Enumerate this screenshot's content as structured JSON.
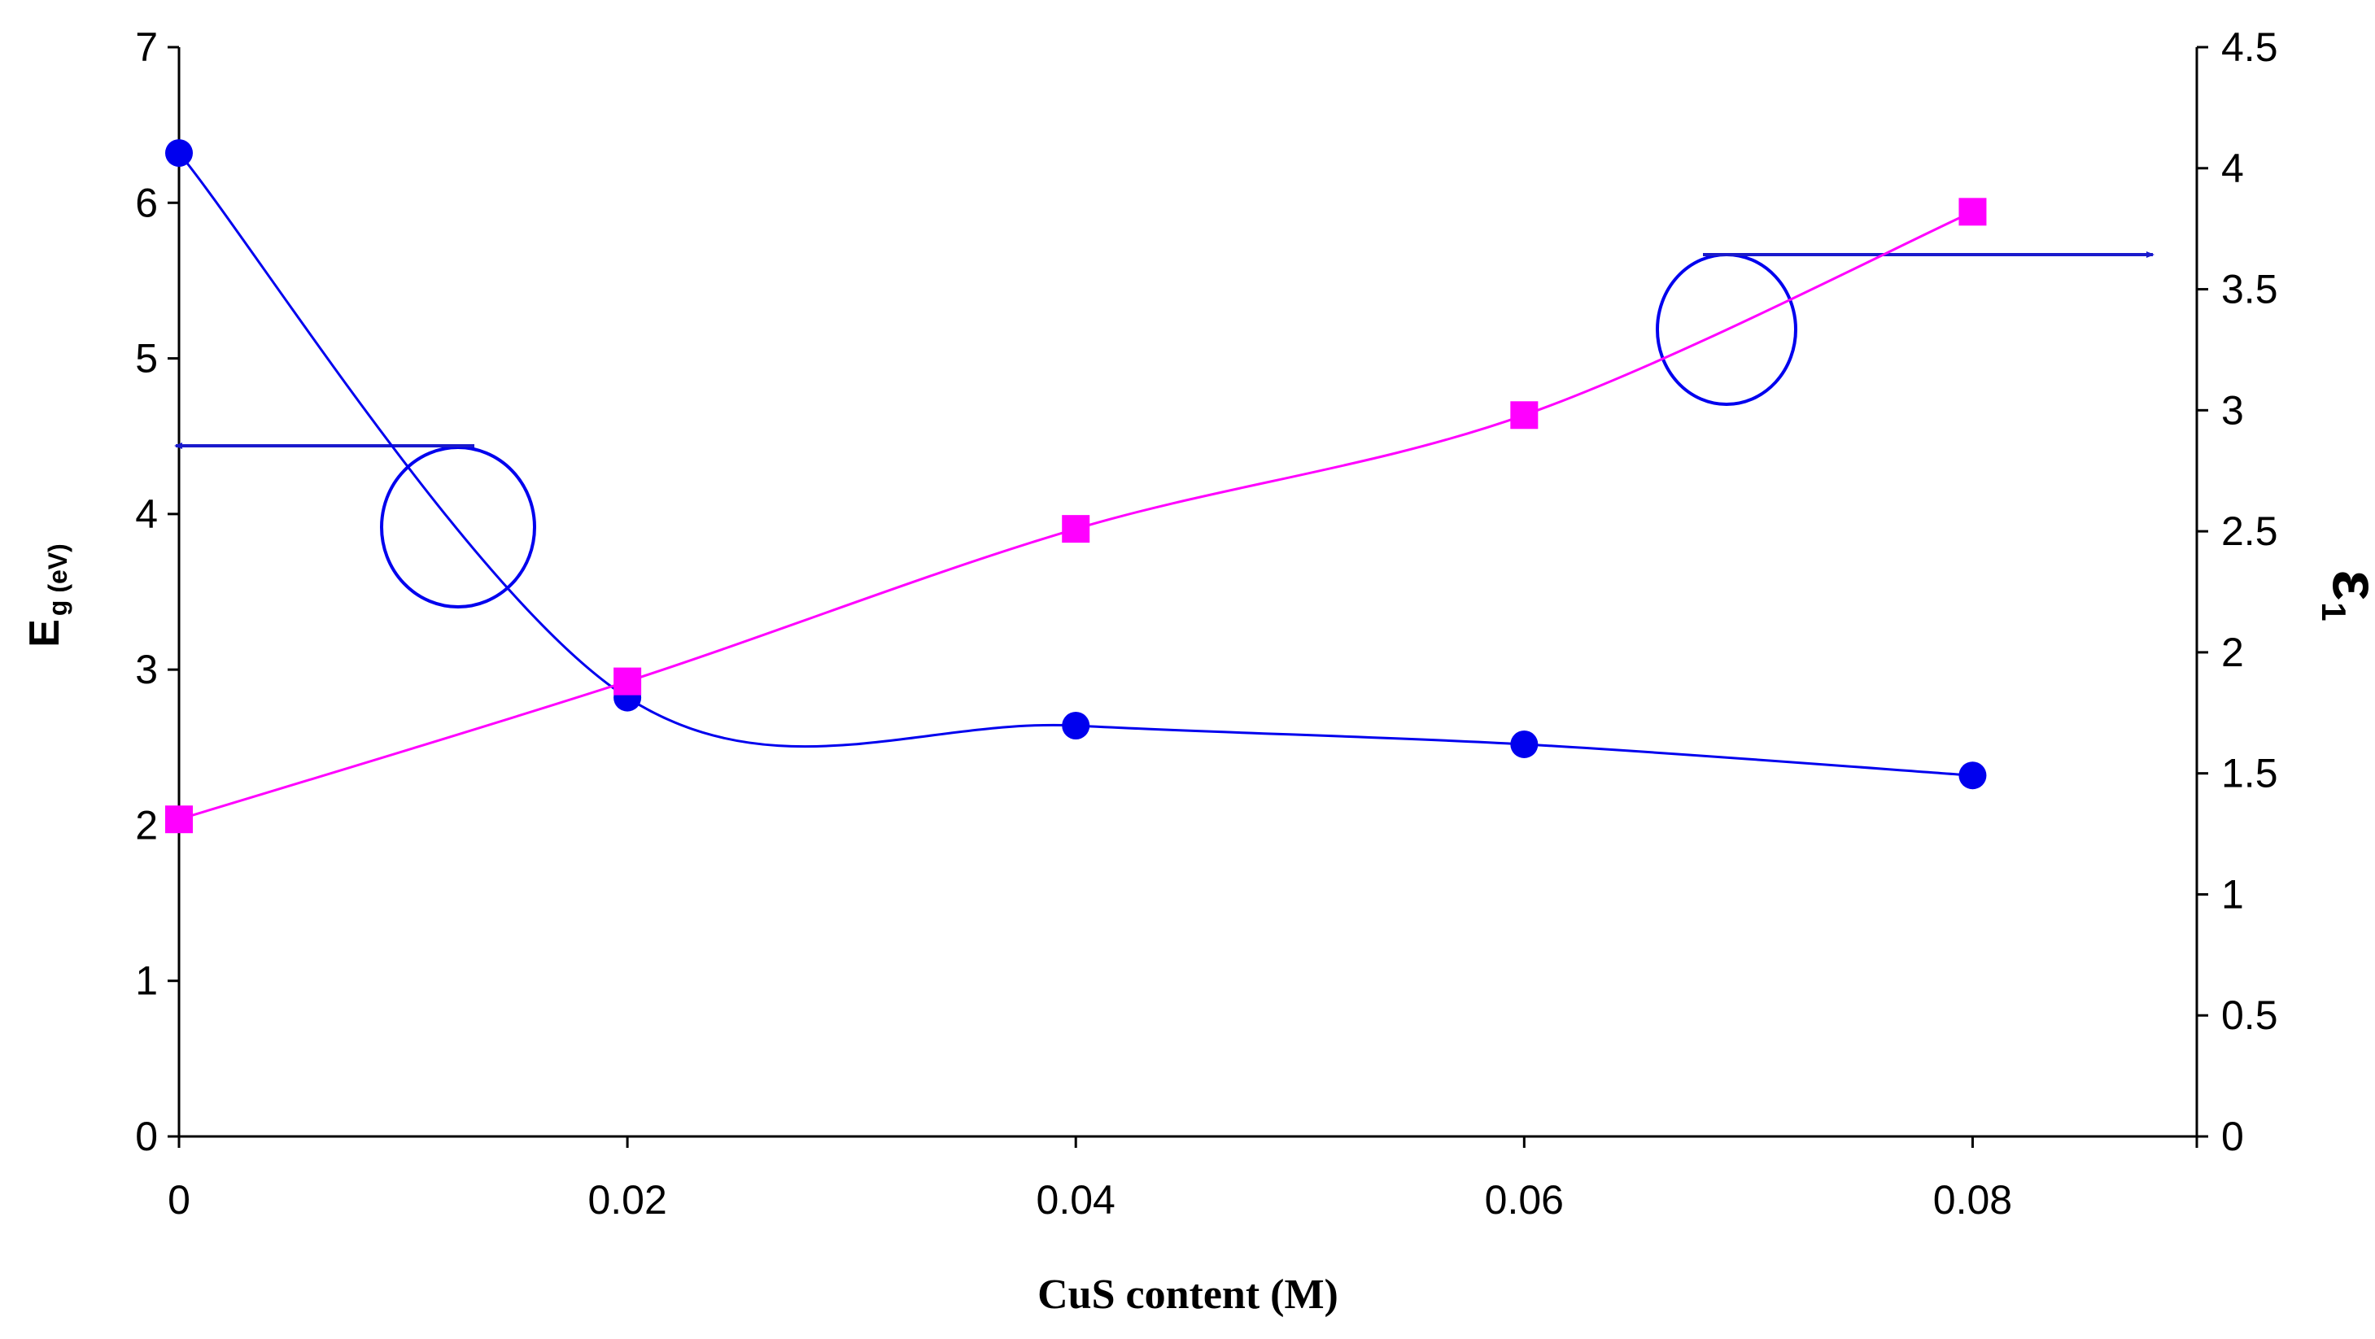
{
  "chart_data": {
    "type": "line",
    "title": "",
    "xlabel": "CuS content (M)",
    "x_ticks": [
      "0",
      "0.02",
      "0.04",
      "0.06",
      "0.08"
    ],
    "xlim": [
      0,
      0.09
    ],
    "left_axis": {
      "label_main": "E",
      "label_sub": "g (eV)",
      "ylim": [
        0,
        7
      ],
      "ticks": [
        "0",
        "1",
        "2",
        "3",
        "4",
        "5",
        "6",
        "7"
      ]
    },
    "right_axis": {
      "label_main": "ε",
      "label_sub": "1",
      "ylim": [
        0,
        4.5
      ],
      "ticks": [
        "0",
        "0.5",
        "1",
        "1.5",
        "2",
        "2.5",
        "3",
        "3.5",
        "4",
        "4.5"
      ]
    },
    "series": [
      {
        "name": "Eg",
        "axis": "left",
        "marker": "circle",
        "color": "#0000EE",
        "x": [
          0,
          0.02,
          0.04,
          0.06,
          0.08
        ],
        "y": [
          6.32,
          2.82,
          2.64,
          2.52,
          2.32
        ]
      },
      {
        "name": "ε1",
        "axis": "right",
        "marker": "square",
        "color": "#FF00FF",
        "x": [
          0,
          0.02,
          0.04,
          0.06,
          0.08
        ],
        "y": [
          1.31,
          1.88,
          2.51,
          2.98,
          3.82
        ]
      }
    ],
    "annotations": [
      {
        "type": "circle-arrow",
        "points_to": "left axis",
        "series": "Eg"
      },
      {
        "type": "circle-arrow",
        "points_to": "right axis",
        "series": "ε1"
      }
    ]
  }
}
